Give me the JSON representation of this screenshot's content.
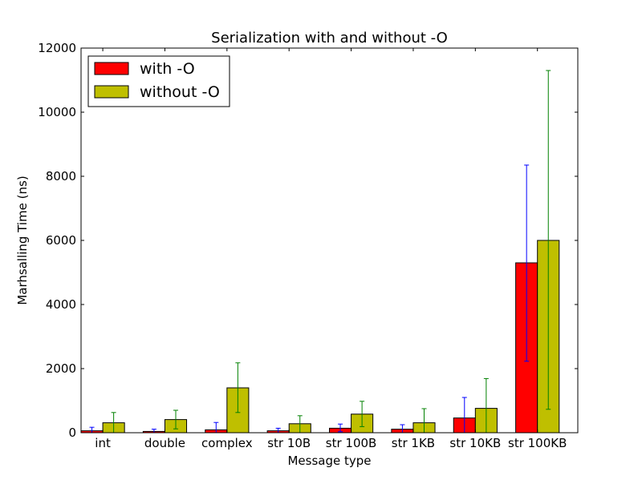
{
  "chart_data": {
    "type": "bar",
    "title": "Serialization with and without -O",
    "xlabel": "Message type",
    "ylabel": "Marhsalling Time (ns)",
    "ylim": [
      0,
      12000
    ],
    "yticks": [
      0,
      2000,
      4000,
      6000,
      8000,
      10000,
      12000
    ],
    "grid": false,
    "legend_position": "top-left",
    "categories": [
      "int",
      "double",
      "complex",
      "str 10B",
      "str 100B",
      "str 1KB",
      "str 10KB",
      "str 100KB"
    ],
    "series": [
      {
        "name": "with -O",
        "color": "#ff0000",
        "error_color": "#0000ff",
        "values": [
          60,
          40,
          90,
          60,
          140,
          110,
          460,
          5300
        ],
        "error_low": [
          0,
          0,
          0,
          0,
          30,
          0,
          0,
          2230
        ],
        "error_high": [
          170,
          110,
          320,
          140,
          270,
          250,
          1100,
          8350
        ]
      },
      {
        "name": "without -O",
        "color": "#bfbf00",
        "error_color": "#008000",
        "values": [
          310,
          410,
          1400,
          280,
          580,
          310,
          760,
          6000
        ],
        "error_low": [
          0,
          120,
          630,
          0,
          190,
          0,
          0,
          730
        ],
        "error_high": [
          630,
          700,
          2180,
          530,
          980,
          750,
          1690,
          11300
        ]
      }
    ]
  }
}
